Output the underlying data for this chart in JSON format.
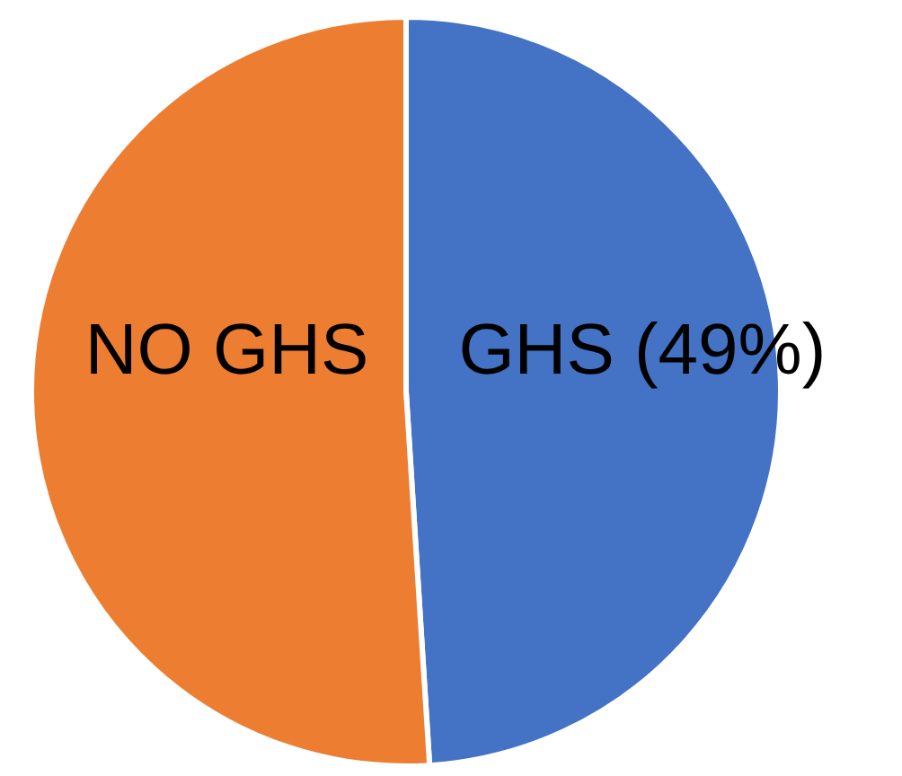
{
  "chart_data": {
    "type": "pie",
    "categories": [
      "GHS (49%)",
      "NO GHS"
    ],
    "values": [
      49,
      51
    ],
    "colors": [
      "#4472c4",
      "#ed7d31"
    ],
    "legend": false
  }
}
